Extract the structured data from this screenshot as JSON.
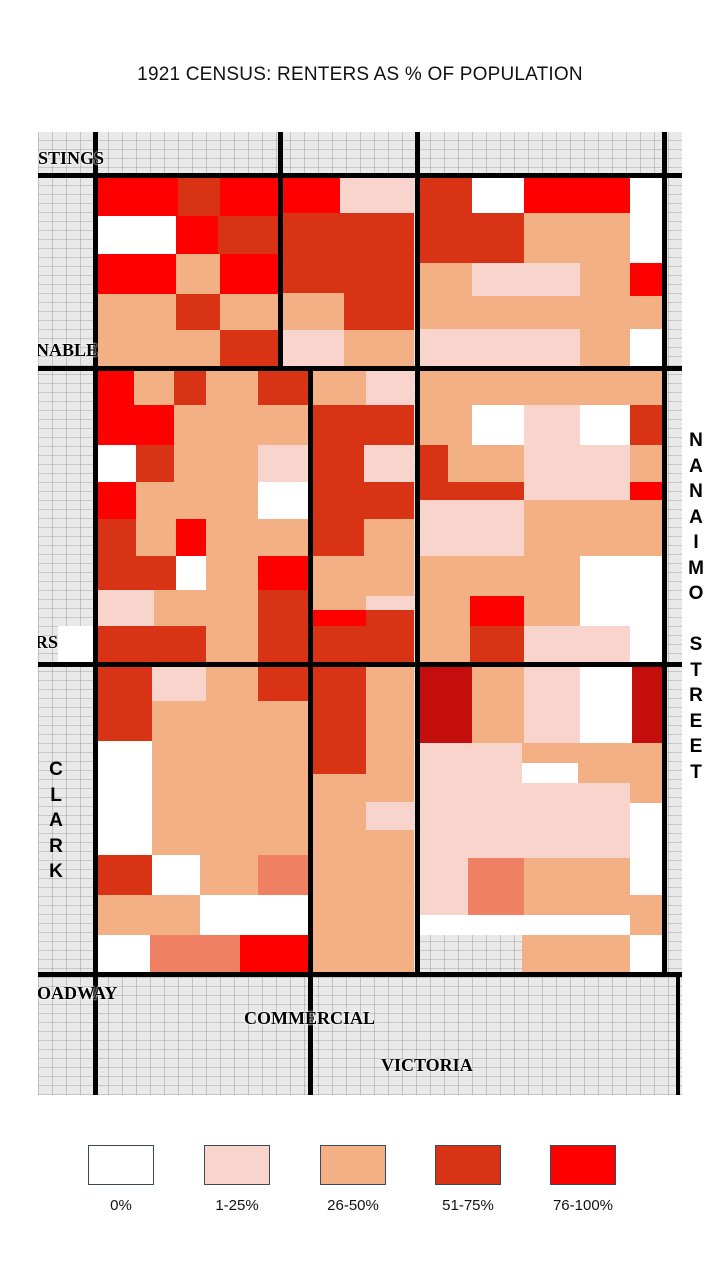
{
  "title": "1921 CENSUS:  RENTERS AS % OF POPULATION",
  "colors": {
    "c0": "#ffffff",
    "c1": "#f8d4cd",
    "c2": "#f2b084",
    "c3": "#d93315",
    "c4": "#ff0000",
    "c5": "#f08063",
    "c6": "#c40e0e"
  },
  "streets": {
    "hastings": "HASTINGS",
    "venables": "VENABLE",
    "first": "FIRS",
    "broadway": "BROADWAY",
    "commercial": "COMMERCIAL",
    "victoria": "VICTORIA",
    "clark": "CLARK",
    "nanaimo_street": "NANAIMO STREET"
  },
  "legend": [
    {
      "label": "0%",
      "color": "#ffffff"
    },
    {
      "label": "1-25%",
      "color": "#f8d4cd"
    },
    {
      "label": "26-50%",
      "color": "#f2b084"
    },
    {
      "label": "51-75%",
      "color": "#d93315"
    },
    {
      "label": "76-100%",
      "color": "#ff0000"
    }
  ]
}
